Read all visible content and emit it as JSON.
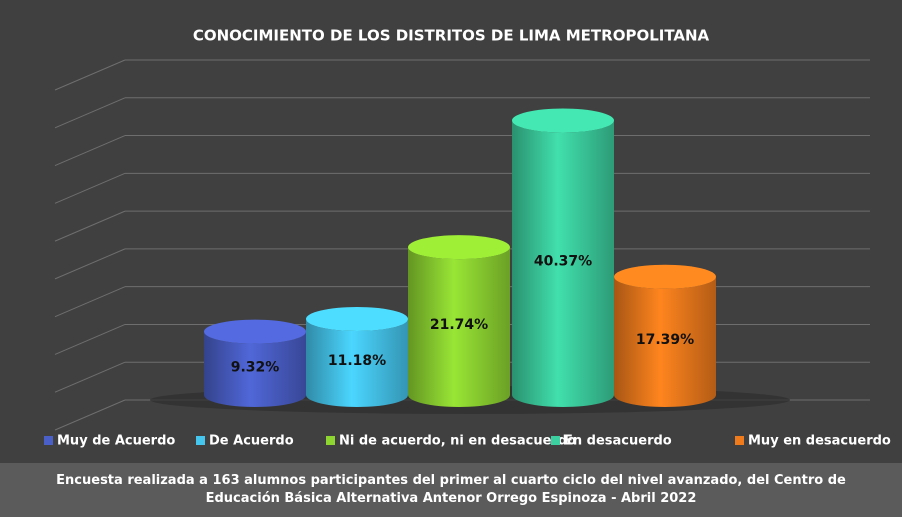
{
  "chart_data": {
    "type": "cylinder",
    "title": "CONOCIMIENTO DE LOS DISTRITOS DE LIMA METROPOLITANA",
    "categories": [
      "Muy de Acuerdo",
      "De Acuerdo",
      "Ni de acuerdo, ni en desacuerdo",
      "En desacuerdo",
      "Muy en desacuerdo"
    ],
    "values": [
      9.32,
      11.18,
      21.74,
      40.37,
      17.39
    ],
    "value_labels": [
      "9.32%",
      "11.18%",
      "21.74%",
      "40.37%",
      "17.39%"
    ],
    "colors": [
      "#4a5fc8",
      "#45c6ef",
      "#8ed531",
      "#3ccf9f",
      "#ef7b1c"
    ],
    "ylim": [
      0,
      45
    ],
    "yticks": [
      0,
      5,
      10,
      15,
      20,
      25,
      30,
      35,
      40,
      45
    ],
    "grid": true,
    "legend": "bottom",
    "caption": "Encuesta realizada a 163 alumnos participantes del primer al cuarto ciclo del nivel avanzado, del Centro de Educación Básica Alternativa Antenor Orrego Espinoza - Abril 2022"
  }
}
